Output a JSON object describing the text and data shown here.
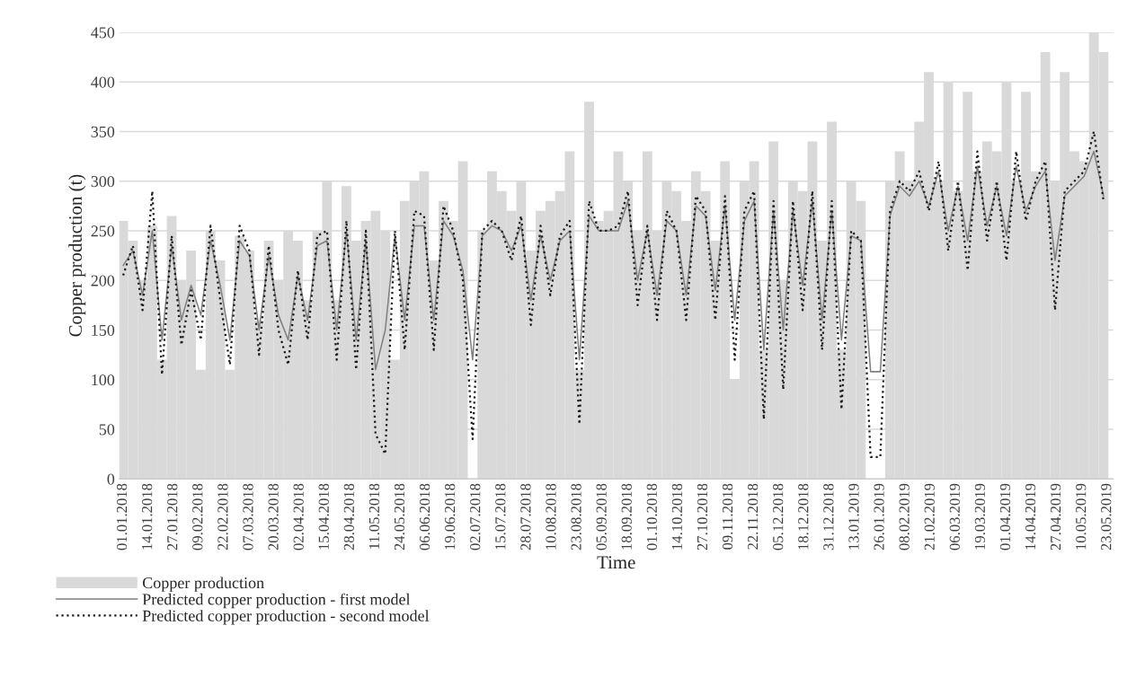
{
  "chart_data": {
    "type": "bar",
    "xlabel": "Time",
    "ylabel": "Copper production (t)",
    "x": [
      "2018-01-01",
      "2018-01-06",
      "2018-01-11",
      "2018-01-16",
      "2018-01-21",
      "2018-01-26",
      "2018-01-31",
      "2018-02-05",
      "2018-02-10",
      "2018-02-15",
      "2018-02-20",
      "2018-02-25",
      "2018-03-02",
      "2018-03-07",
      "2018-03-12",
      "2018-03-17",
      "2018-03-22",
      "2018-03-27",
      "2018-04-01",
      "2018-04-06",
      "2018-04-11",
      "2018-04-16",
      "2018-04-21",
      "2018-04-26",
      "2018-05-01",
      "2018-05-06",
      "2018-05-11",
      "2018-05-16",
      "2018-05-21",
      "2018-05-26",
      "2018-05-31",
      "2018-06-05",
      "2018-06-10",
      "2018-06-15",
      "2018-06-20",
      "2018-06-25",
      "2018-06-30",
      "2018-07-05",
      "2018-07-10",
      "2018-07-15",
      "2018-07-20",
      "2018-07-25",
      "2018-07-30",
      "2018-08-04",
      "2018-08-09",
      "2018-08-14",
      "2018-08-19",
      "2018-08-24",
      "2018-08-29",
      "2018-09-03",
      "2018-09-08",
      "2018-09-13",
      "2018-09-18",
      "2018-09-23",
      "2018-09-28",
      "2018-10-03",
      "2018-10-08",
      "2018-10-13",
      "2018-10-18",
      "2018-10-23",
      "2018-10-28",
      "2018-11-02",
      "2018-11-07",
      "2018-11-12",
      "2018-11-17",
      "2018-11-22",
      "2018-11-27",
      "2018-12-02",
      "2018-12-07",
      "2018-12-12",
      "2018-12-17",
      "2018-12-22",
      "2018-12-27",
      "2019-01-01",
      "2019-01-06",
      "2019-01-11",
      "2019-01-16",
      "2019-01-21",
      "2019-01-26",
      "2019-01-31",
      "2019-02-05",
      "2019-02-10",
      "2019-02-15",
      "2019-02-20",
      "2019-02-25",
      "2019-03-02",
      "2019-03-07",
      "2019-03-12",
      "2019-03-17",
      "2019-03-22",
      "2019-03-27",
      "2019-04-01",
      "2019-04-06",
      "2019-04-11",
      "2019-04-16",
      "2019-04-21",
      "2019-04-26",
      "2019-05-01",
      "2019-05-06",
      "2019-05-11",
      "2019-05-16",
      "2019-05-21"
    ],
    "series": [
      {
        "name": "Copper production",
        "color": "#d9d9d9",
        "values": [
          260,
          240,
          200,
          255,
          120,
          265,
          200,
          230,
          110,
          250,
          220,
          110,
          245,
          230,
          160,
          240,
          200,
          250,
          240,
          180,
          250,
          300,
          180,
          295,
          240,
          260,
          270,
          250,
          120,
          280,
          300,
          310,
          220,
          280,
          260,
          320,
          0,
          250,
          310,
          290,
          270,
          300,
          230,
          270,
          280,
          290,
          330,
          110,
          380,
          260,
          270,
          330,
          300,
          250,
          330,
          250,
          300,
          290,
          260,
          310,
          290,
          240,
          320,
          100,
          300,
          320,
          130,
          340,
          200,
          300,
          290,
          340,
          240,
          360,
          130,
          300,
          280,
          0,
          0,
          300,
          330,
          300,
          360,
          410,
          300,
          400,
          290,
          390,
          310,
          340,
          330,
          400,
          300,
          390,
          310,
          430,
          300,
          410,
          330,
          320,
          450,
          430
        ]
      },
      {
        "name": "Predicted copper production - first model",
        "type": "line",
        "line_style": "solid",
        "color": "#808080",
        "values": [
          215,
          230,
          185,
          250,
          140,
          235,
          160,
          195,
          165,
          240,
          195,
          140,
          240,
          225,
          150,
          225,
          165,
          140,
          205,
          160,
          235,
          240,
          150,
          250,
          140,
          240,
          110,
          150,
          245,
          160,
          255,
          255,
          160,
          260,
          245,
          210,
          120,
          245,
          255,
          250,
          230,
          255,
          180,
          245,
          200,
          240,
          250,
          120,
          265,
          250,
          250,
          250,
          280,
          200,
          250,
          185,
          260,
          250,
          185,
          275,
          265,
          190,
          275,
          160,
          260,
          280,
          130,
          270,
          150,
          270,
          195,
          280,
          160,
          270,
          140,
          245,
          240,
          108,
          108,
          265,
          295,
          285,
          300,
          275,
          310,
          250,
          295,
          240,
          315,
          255,
          295,
          245,
          315,
          270,
          295,
          310,
          220,
          285,
          295,
          305,
          330,
          285
        ]
      },
      {
        "name": "Predicted copper production - second model",
        "type": "line",
        "line_style": "dotted",
        "color": "#1a1a1a",
        "values": [
          205,
          235,
          170,
          290,
          105,
          245,
          135,
          190,
          140,
          255,
          180,
          115,
          255,
          230,
          125,
          235,
          150,
          115,
          210,
          140,
          245,
          250,
          120,
          260,
          110,
          250,
          45,
          25,
          250,
          130,
          270,
          265,
          130,
          275,
          250,
          200,
          40,
          250,
          260,
          250,
          220,
          265,
          155,
          255,
          185,
          245,
          260,
          55,
          280,
          250,
          250,
          255,
          290,
          175,
          255,
          160,
          270,
          250,
          160,
          285,
          270,
          160,
          285,
          120,
          270,
          290,
          60,
          280,
          90,
          280,
          170,
          290,
          130,
          280,
          70,
          250,
          240,
          22,
          22,
          270,
          300,
          290,
          310,
          270,
          320,
          230,
          300,
          210,
          330,
          240,
          300,
          220,
          330,
          260,
          300,
          320,
          170,
          290,
          300,
          310,
          350,
          280
        ]
      }
    ],
    "xlim": [
      "2017-12-30",
      "2019-05-26"
    ],
    "xticks": [
      {
        "value": "2018-01-01",
        "label": "01.01.2018"
      },
      {
        "value": "2018-01-14",
        "label": "14.01.2018"
      },
      {
        "value": "2018-01-27",
        "label": "27.01.2018"
      },
      {
        "value": "2018-02-09",
        "label": "09.02.2018"
      },
      {
        "value": "2018-02-22",
        "label": "22.02.2018"
      },
      {
        "value": "2018-03-07",
        "label": "07.03.2018"
      },
      {
        "value": "2018-03-20",
        "label": "20.03.2018"
      },
      {
        "value": "2018-04-02",
        "label": "02.04.2018"
      },
      {
        "value": "2018-04-15",
        "label": "15.04.2018"
      },
      {
        "value": "2018-04-28",
        "label": "28.04.2018"
      },
      {
        "value": "2018-05-11",
        "label": "11.05.2018"
      },
      {
        "value": "2018-05-24",
        "label": "24.05.2018"
      },
      {
        "value": "2018-06-06",
        "label": "06.06.2018"
      },
      {
        "value": "2018-06-19",
        "label": "19.06.2018"
      },
      {
        "value": "2018-07-02",
        "label": "02.07.2018"
      },
      {
        "value": "2018-07-15",
        "label": "15.07.2018"
      },
      {
        "value": "2018-07-28",
        "label": "28.07.2018"
      },
      {
        "value": "2018-08-10",
        "label": "10.08.2018"
      },
      {
        "value": "2018-08-23",
        "label": "23.08.2018"
      },
      {
        "value": "2018-09-05",
        "label": "05.09.2018"
      },
      {
        "value": "2018-09-18",
        "label": "18.09.2018"
      },
      {
        "value": "2018-10-01",
        "label": "01.10.2018"
      },
      {
        "value": "2018-10-14",
        "label": "14.10.2018"
      },
      {
        "value": "2018-10-27",
        "label": "27.10.2018"
      },
      {
        "value": "2018-11-09",
        "label": "09.11.2018"
      },
      {
        "value": "2018-11-22",
        "label": "22.11.2018"
      },
      {
        "value": "2018-12-05",
        "label": "05.12.2018"
      },
      {
        "value": "2018-12-18",
        "label": "18.12.2018"
      },
      {
        "value": "2018-12-31",
        "label": "31.12.2018"
      },
      {
        "value": "2019-01-13",
        "label": "13.01.2019"
      },
      {
        "value": "2019-01-26",
        "label": "26.01.2019"
      },
      {
        "value": "2019-02-08",
        "label": "08.02.2019"
      },
      {
        "value": "2019-02-21",
        "label": "21.02.2019"
      },
      {
        "value": "2019-03-06",
        "label": "06.03.2019"
      },
      {
        "value": "2019-03-19",
        "label": "19.03.2019"
      },
      {
        "value": "2019-04-01",
        "label": "01.04.2019"
      },
      {
        "value": "2019-04-14",
        "label": "14.04.2019"
      },
      {
        "value": "2019-04-27",
        "label": "27.04.2019"
      },
      {
        "value": "2019-05-10",
        "label": "10.05.2019"
      },
      {
        "value": "2019-05-23",
        "label": "23.05.2019"
      }
    ],
    "ylim": [
      0,
      450
    ],
    "yticks": [
      0,
      50,
      100,
      150,
      200,
      250,
      300,
      350,
      400,
      450
    ],
    "grid": "y",
    "legend": "bottom left"
  }
}
